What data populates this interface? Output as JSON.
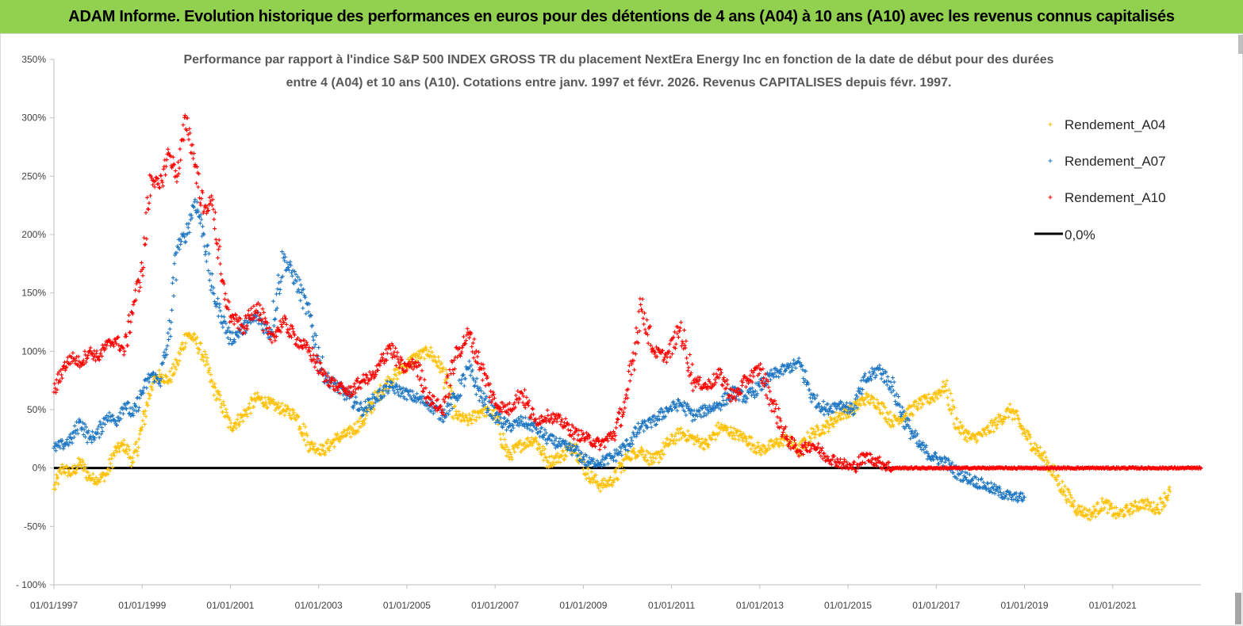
{
  "banner": {
    "title": "ADAM Informe. Evolution historique des performances en euros pour des détentions de 4 ans (A04) à 10 ans (A10) avec les revenus connus capitalisés",
    "color": "#92d050"
  },
  "chart_data": {
    "type": "scatter",
    "title_line1": "Performance par rapport à l'indice S&P 500 INDEX GROSS TR  du placement NextEra Energy Inc en fonction de la date de début pour des durées",
    "title_line2": "entre 4 (A04) et 10 ans (A10). Cotations entre janv. 1997 et févr. 2026. Revenus CAPITALISES depuis févr. 1997.",
    "xlim": [
      1997.0,
      2023.0
    ],
    "ylim": [
      -100,
      350
    ],
    "y_ticks": [
      -100,
      -50,
      0,
      50,
      100,
      150,
      200,
      250,
      300,
      350
    ],
    "y_tick_labels": [
      "- 100%",
      "-50%",
      "0%",
      "50%",
      "100%",
      "150%",
      "200%",
      "250%",
      "300%",
      "350%"
    ],
    "x_ticks": [
      1997,
      1999,
      2001,
      2003,
      2005,
      2007,
      2009,
      2011,
      2013,
      2015,
      2017,
      2019,
      2021
    ],
    "x_tick_labels": [
      "01/01/1997",
      "01/01/1999",
      "01/01/2001",
      "01/01/2003",
      "01/01/2005",
      "01/01/2007",
      "01/01/2009",
      "01/01/2011",
      "01/01/2013",
      "01/01/2015",
      "01/01/2017",
      "01/01/2019",
      "01/01/2021"
    ],
    "legend_position": "right",
    "legend": [
      "Rendement_A04",
      "Rendement_A07",
      "Rendement_A10",
      "0,0%"
    ],
    "series": [
      {
        "name": "Rendement_A04",
        "color": "#ffc000",
        "x": [
          1997.0,
          1997.2,
          1997.4,
          1997.6,
          1997.8,
          1998.0,
          1998.2,
          1998.4,
          1998.6,
          1998.8,
          1999.0,
          1999.2,
          1999.4,
          1999.6,
          1999.8,
          2000.0,
          2000.2,
          2000.4,
          2000.6,
          2000.8,
          2001.0,
          2001.3,
          2001.6,
          2001.9,
          2002.2,
          2002.5,
          2002.8,
          2003.1,
          2003.4,
          2003.7,
          2004.0,
          2004.3,
          2004.6,
          2004.9,
          2005.2,
          2005.5,
          2005.8,
          2006.1,
          2006.4,
          2006.7,
          2007.0,
          2007.3,
          2007.6,
          2007.9,
          2008.2,
          2008.5,
          2008.8,
          2009.1,
          2009.4,
          2009.7,
          2010.0,
          2010.3,
          2010.6,
          2010.9,
          2011.2,
          2011.5,
          2011.8,
          2012.1,
          2012.4,
          2012.7,
          2013.0,
          2013.3,
          2013.6,
          2013.9,
          2014.2,
          2014.5,
          2014.8,
          2015.1,
          2015.4,
          2015.7,
          2016.0,
          2016.3,
          2016.6,
          2016.9,
          2017.2,
          2017.5,
          2017.8,
          2018.1,
          2018.4,
          2018.7,
          2019.0,
          2019.3,
          2019.6,
          2019.9,
          2020.2,
          2020.5,
          2020.8,
          2021.1,
          2021.4,
          2021.7,
          2022.0,
          2022.3
        ],
        "values": [
          -18,
          0,
          -5,
          5,
          -8,
          -10,
          -5,
          15,
          20,
          5,
          35,
          70,
          80,
          75,
          90,
          115,
          110,
          95,
          70,
          55,
          35,
          45,
          60,
          55,
          50,
          45,
          20,
          15,
          25,
          30,
          40,
          60,
          75,
          85,
          95,
          100,
          85,
          45,
          40,
          50,
          45,
          10,
          20,
          25,
          5,
          10,
          20,
          -5,
          -15,
          -10,
          10,
          15,
          5,
          20,
          30,
          25,
          20,
          35,
          30,
          25,
          15,
          20,
          25,
          15,
          30,
          35,
          45,
          50,
          60,
          55,
          40,
          45,
          55,
          60,
          70,
          35,
          25,
          30,
          40,
          50,
          30,
          15,
          0,
          -20,
          -35,
          -40,
          -30,
          -40,
          -35,
          -30,
          -35,
          -20
        ]
      },
      {
        "name": "Rendement_A07",
        "color": "#1f77c4",
        "x": [
          1997.0,
          1997.2,
          1997.4,
          1997.6,
          1997.8,
          1998.0,
          1998.2,
          1998.4,
          1998.6,
          1998.8,
          1999.0,
          1999.2,
          1999.4,
          1999.6,
          1999.8,
          2000.0,
          2000.2,
          2000.4,
          2000.6,
          2000.8,
          2001.0,
          2001.3,
          2001.6,
          2001.9,
          2002.2,
          2002.5,
          2002.8,
          2003.1,
          2003.4,
          2003.7,
          2004.0,
          2004.3,
          2004.6,
          2004.9,
          2005.2,
          2005.5,
          2005.8,
          2006.1,
          2006.4,
          2006.7,
          2007.0,
          2007.3,
          2007.6,
          2007.9,
          2008.2,
          2008.5,
          2008.8,
          2009.1,
          2009.4,
          2009.7,
          2010.0,
          2010.3,
          2010.6,
          2010.9,
          2011.2,
          2011.5,
          2011.8,
          2012.1,
          2012.4,
          2012.7,
          2013.0,
          2013.3,
          2013.6,
          2013.9,
          2014.2,
          2014.5,
          2014.8,
          2015.1,
          2015.4,
          2015.7,
          2016.0,
          2016.3,
          2016.6,
          2016.9,
          2017.2,
          2017.5,
          2017.8,
          2018.1,
          2018.4,
          2018.7,
          2019.0
        ],
        "values": [
          17,
          20,
          25,
          40,
          25,
          30,
          45,
          40,
          55,
          45,
          65,
          80,
          75,
          110,
          190,
          200,
          230,
          200,
          150,
          130,
          110,
          120,
          130,
          115,
          180,
          160,
          130,
          80,
          70,
          60,
          50,
          60,
          70,
          65,
          60,
          55,
          45,
          60,
          85,
          60,
          45,
          35,
          40,
          35,
          25,
          20,
          15,
          5,
          5,
          10,
          20,
          35,
          40,
          50,
          55,
          45,
          50,
          55,
          65,
          60,
          70,
          80,
          85,
          90,
          60,
          50,
          55,
          50,
          75,
          85,
          70,
          40,
          20,
          10,
          5,
          -5,
          -10,
          -15,
          -20,
          -25,
          -25
        ]
      },
      {
        "name": "Rendement_A10",
        "color": "#ff0000",
        "x": [
          1997.0,
          1997.2,
          1997.4,
          1997.6,
          1997.8,
          1998.0,
          1998.2,
          1998.4,
          1998.6,
          1998.8,
          1999.0,
          1999.2,
          1999.4,
          1999.6,
          1999.8,
          2000.0,
          2000.2,
          2000.4,
          2000.6,
          2000.8,
          2001.0,
          2001.3,
          2001.6,
          2001.9,
          2002.2,
          2002.5,
          2002.8,
          2003.1,
          2003.4,
          2003.7,
          2004.0,
          2004.3,
          2004.6,
          2004.9,
          2005.2,
          2005.5,
          2005.8,
          2006.1,
          2006.4,
          2006.7,
          2007.0,
          2007.3,
          2007.6,
          2007.9,
          2008.2,
          2008.5,
          2008.8,
          2009.1,
          2009.4,
          2009.7,
          2010.0,
          2010.3,
          2010.6,
          2010.9,
          2011.2,
          2011.5,
          2011.8,
          2012.1,
          2012.4,
          2012.7,
          2013.0,
          2013.3,
          2013.6,
          2013.9,
          2014.2,
          2014.5,
          2014.8,
          2015.1,
          2015.4,
          2015.7,
          2016.0,
          2016.5,
          2017.0,
          2017.5,
          2018.0,
          2018.5,
          2019.0,
          2019.5,
          2020.0,
          2020.5,
          2021.0,
          2021.5,
          2022.0,
          2022.5,
          2023.0
        ],
        "values": [
          65,
          85,
          95,
          90,
          100,
          95,
          105,
          110,
          100,
          140,
          170,
          250,
          240,
          270,
          250,
          300,
          260,
          220,
          230,
          160,
          130,
          120,
          140,
          110,
          125,
          110,
          100,
          80,
          70,
          65,
          75,
          80,
          105,
          85,
          90,
          60,
          50,
          95,
          115,
          85,
          55,
          50,
          65,
          40,
          45,
          40,
          30,
          25,
          20,
          30,
          60,
          140,
          100,
          95,
          120,
          75,
          70,
          80,
          60,
          75,
          85,
          55,
          25,
          15,
          20,
          10,
          5,
          0,
          10,
          5,
          0,
          0,
          0,
          0,
          0,
          0,
          0,
          0,
          0,
          0,
          0,
          0,
          0,
          0,
          0
        ]
      },
      {
        "name": "0,0%",
        "color": "#000000",
        "type": "line",
        "x": [
          1997.0,
          2023.0
        ],
        "values": [
          0,
          0
        ]
      }
    ]
  }
}
